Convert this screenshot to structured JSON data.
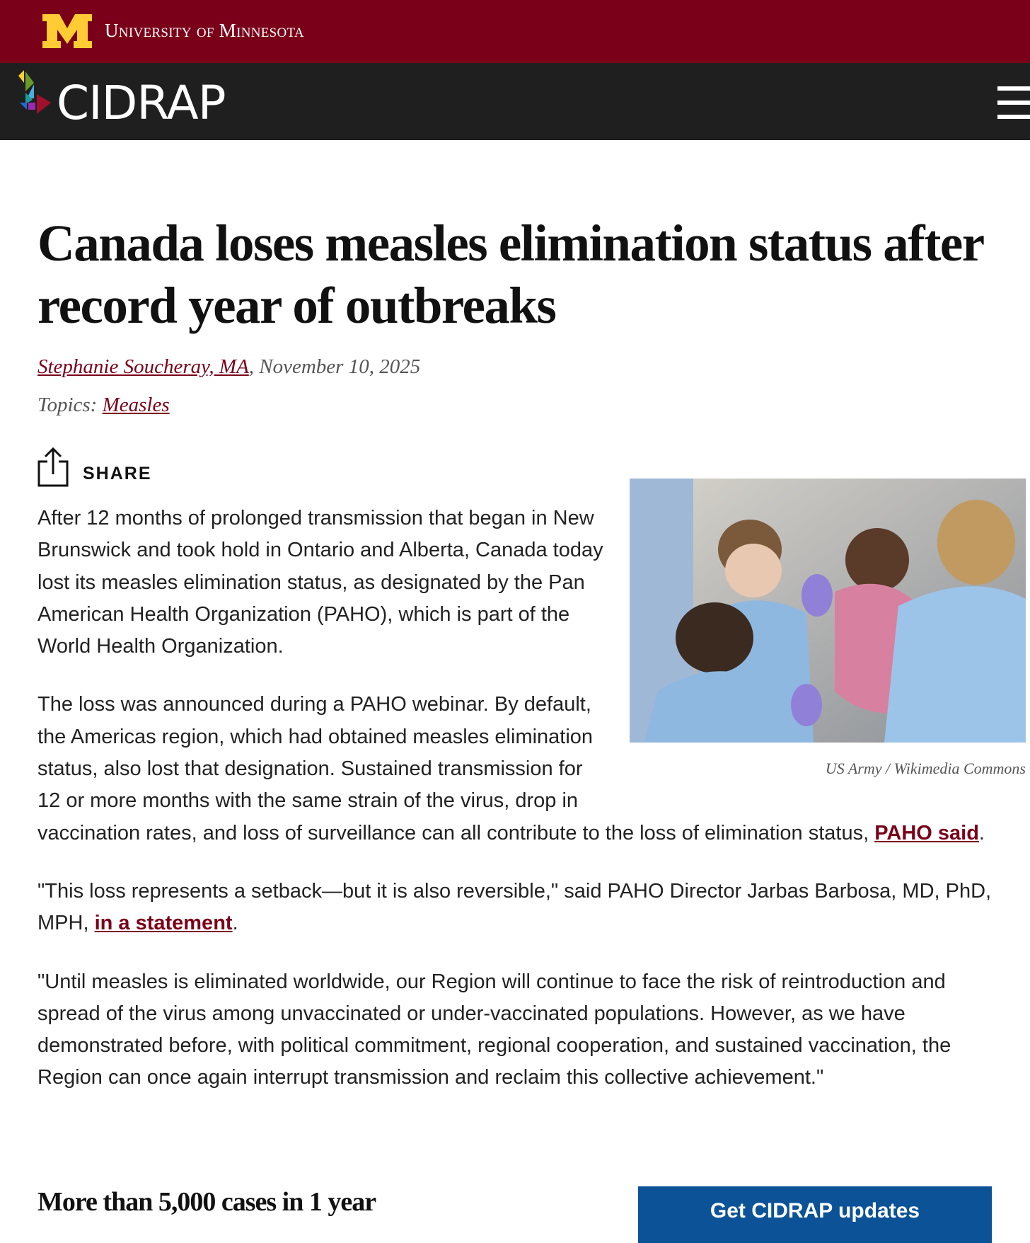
{
  "header": {
    "university": "University of Minnesota",
    "site_name": "CIDRAP",
    "colors": {
      "maroon": "#7a0019",
      "gold": "#ffcc33",
      "dark": "#1f1f1f"
    }
  },
  "article": {
    "title": "Canada loses measles elimination status after record year of outbreaks",
    "author": "Stephanie Soucheray, MA",
    "date": "November 10, 2025",
    "topics_label": "Topics:",
    "topic": "Measles",
    "share_label": "SHARE",
    "image_caption": "US Army / Wikimedia Commons",
    "paragraphs": {
      "p1": "After 12 months of prolonged transmission that began in New Brunswick and took hold in Ontario and Alberta, Canada today lost its measles elimination status, as designated by the Pan American Health Organization (PAHO), which is part of the World Health Organization.",
      "p2": "The loss was announced during a PAHO webinar. By default, the Americas region, which had obtained measles elimination status, also lost that designation. Sustained transmission for 12 or more months with the same strain of the virus, drop in vaccination rates, and loss of surveillance can all contribute to the loss of elimination status, ",
      "p2_link": "PAHO said",
      "p3": "\"This loss represents a setback—but it is also reversible,\" said PAHO Director Jarbas Barbosa, MD, PhD, MPH, ",
      "p3_link": "in a statement",
      "p4": "\"Until measles is eliminated worldwide, our Region will continue to face the risk of reintroduction and spread of the virus among unvaccinated or under-vaccinated populations. However, as we have demonstrated before, with political commitment, regional cooperation, and sustained vaccination, the Region can once again interrupt transmission and reclaim this collective achievement.\""
    },
    "subheading": "More than 5,000 cases in 1 year",
    "period": "."
  },
  "cta": {
    "label": "Get CIDRAP updates",
    "color": "#0b5297"
  }
}
